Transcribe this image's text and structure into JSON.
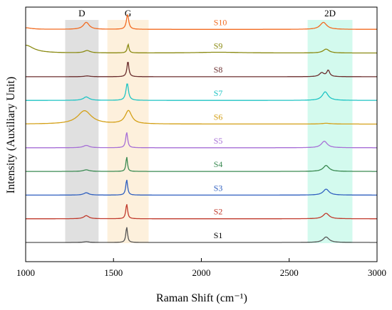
{
  "chart_data": {
    "type": "line",
    "xlabel": "Raman Shift (cm⁻¹)",
    "ylabel": "Intensity (Auxiliary Unit)",
    "xlim": [
      1000,
      3000
    ],
    "x_ticks": [
      "1000",
      "1500",
      "2000",
      "2500",
      "3000"
    ],
    "grid": false,
    "bands": [
      {
        "label": "D",
        "range": [
          1225,
          1415
        ],
        "color": "#c7c7c7"
      },
      {
        "label": "G",
        "range": [
          1465,
          1700
        ],
        "color": "#fbe3bf"
      },
      {
        "label": "2D",
        "range": [
          2605,
          2860
        ],
        "color": "#aef5e0"
      }
    ],
    "series": [
      {
        "name": "S10",
        "color": "#f26b21",
        "baseline": 9,
        "label_x": 2070,
        "peaks": [
          {
            "x": 1345,
            "h": 0.45,
            "w": 40
          },
          {
            "x": 1580,
            "h": 0.95,
            "w": 16
          },
          {
            "x": 2695,
            "h": 0.45,
            "w": 45
          }
        ],
        "bg": [
          {
            "x": 1000,
            "h": 0.1,
            "w": 80
          }
        ]
      },
      {
        "name": "S9",
        "color": "#8a8a12",
        "baseline": 8,
        "label_x": 2070,
        "peaks": [
          {
            "x": 1350,
            "h": 0.15,
            "w": 40
          },
          {
            "x": 1583,
            "h": 0.55,
            "w": 12
          },
          {
            "x": 2710,
            "h": 0.25,
            "w": 40
          }
        ],
        "bg": [
          {
            "x": 1000,
            "h": 0.5,
            "w": 110
          },
          {
            "x": 2100,
            "h": 0.05,
            "w": 300
          }
        ]
      },
      {
        "name": "S8",
        "color": "#6b2e2e",
        "baseline": 7,
        "label_x": 2070,
        "peaks": [
          {
            "x": 1350,
            "h": 0.05,
            "w": 40
          },
          {
            "x": 1582,
            "h": 1.0,
            "w": 13
          },
          {
            "x": 2685,
            "h": 0.25,
            "w": 30
          },
          {
            "x": 2722,
            "h": 0.4,
            "w": 20
          }
        ],
        "bg": []
      },
      {
        "name": "S7",
        "color": "#1ec4c4",
        "baseline": 6,
        "label_x": 2070,
        "peaks": [
          {
            "x": 1345,
            "h": 0.22,
            "w": 40
          },
          {
            "x": 1578,
            "h": 1.1,
            "w": 17
          },
          {
            "x": 2705,
            "h": 0.55,
            "w": 40
          }
        ],
        "bg": []
      },
      {
        "name": "S6",
        "color": "#d4a017",
        "baseline": 5,
        "label_x": 2070,
        "peaks": [
          {
            "x": 1335,
            "h": 0.85,
            "w": 95
          },
          {
            "x": 1585,
            "h": 0.85,
            "w": 45
          },
          {
            "x": 2710,
            "h": 0.05,
            "w": 60
          }
        ],
        "bg": []
      },
      {
        "name": "S5",
        "color": "#a66ed6",
        "baseline": 4,
        "label_x": 2070,
        "peaks": [
          {
            "x": 1345,
            "h": 0.15,
            "w": 40
          },
          {
            "x": 1575,
            "h": 1.0,
            "w": 13
          },
          {
            "x": 2700,
            "h": 0.42,
            "w": 40
          }
        ],
        "bg": []
      },
      {
        "name": "S4",
        "color": "#3a8a52",
        "baseline": 3,
        "label_x": 2070,
        "peaks": [
          {
            "x": 1345,
            "h": 0.1,
            "w": 40
          },
          {
            "x": 1575,
            "h": 0.95,
            "w": 10
          },
          {
            "x": 2710,
            "h": 0.38,
            "w": 40
          }
        ],
        "bg": []
      },
      {
        "name": "S3",
        "color": "#2f5fbf",
        "baseline": 2,
        "label_x": 2070,
        "peaks": [
          {
            "x": 1345,
            "h": 0.15,
            "w": 35
          },
          {
            "x": 1575,
            "h": 1.0,
            "w": 12
          },
          {
            "x": 2710,
            "h": 0.38,
            "w": 40
          }
        ],
        "bg": []
      },
      {
        "name": "S2",
        "color": "#c0392b",
        "baseline": 1,
        "label_x": 2070,
        "peaks": [
          {
            "x": 1345,
            "h": 0.2,
            "w": 35
          },
          {
            "x": 1575,
            "h": 0.95,
            "w": 12
          },
          {
            "x": 2710,
            "h": 0.35,
            "w": 40
          }
        ],
        "bg": []
      },
      {
        "name": "S1",
        "color": "#555555",
        "baseline": 0,
        "label_x": 2070,
        "peaks": [
          {
            "x": 1345,
            "h": 0.05,
            "w": 35
          },
          {
            "x": 1575,
            "h": 1.0,
            "w": 11
          },
          {
            "x": 2710,
            "h": 0.35,
            "w": 40
          }
        ],
        "bg": []
      }
    ]
  }
}
